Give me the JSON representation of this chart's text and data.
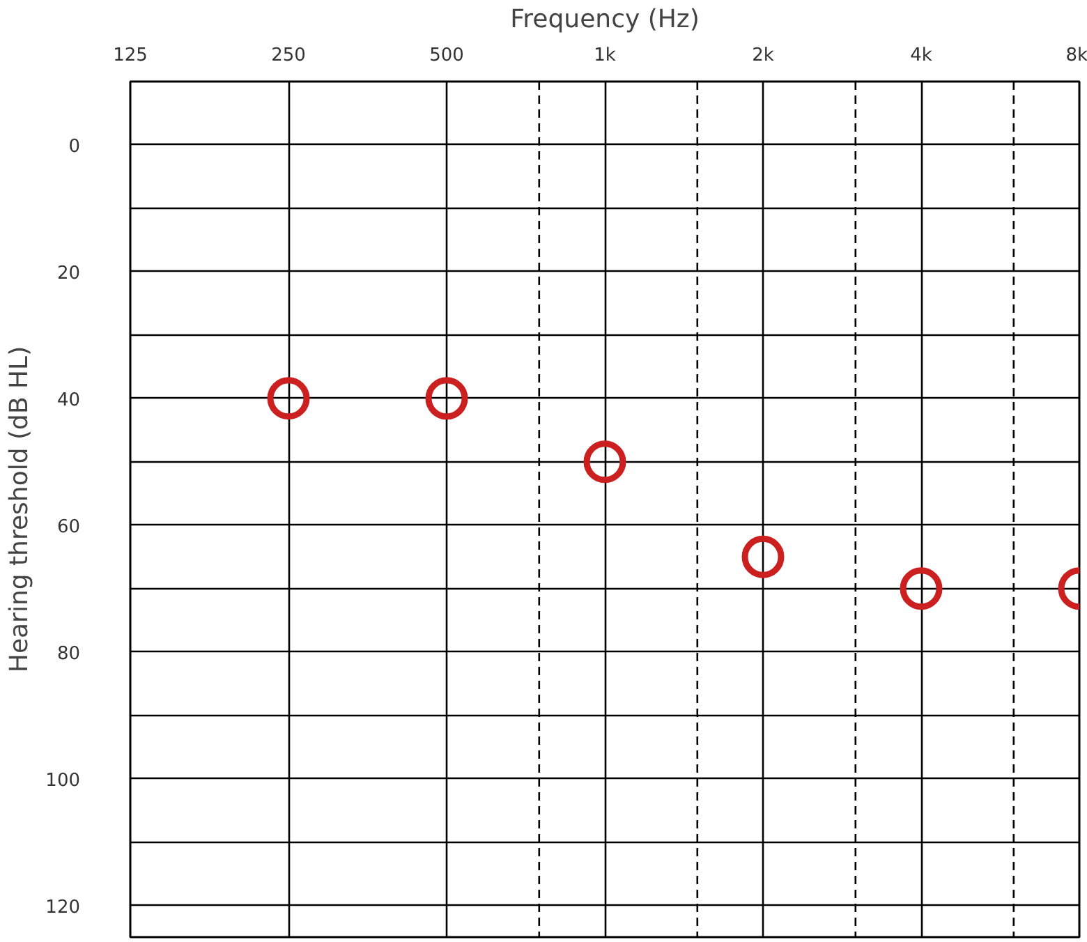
{
  "chart_data": {
    "type": "scatter",
    "xlabel": "Frequency (Hz)",
    "ylabel": "Hearing threshold (dB HL)",
    "x": [
      250,
      500,
      1000,
      2000,
      4000,
      8000
    ],
    "series": [
      {
        "color": "#cc2020",
        "values": [
          40,
          40,
          50,
          65,
          70,
          70
        ]
      }
    ],
    "log": "x",
    "marker": "circle",
    "grid": true,
    "xlim": [
      125,
      8000
    ],
    "ylim": [
      125,
      -10
    ],
    "xticks": [
      125,
      250,
      500,
      {
        "value": 1000,
        "label": "1k"
      },
      {
        "value": 2000,
        "label": "2k"
      },
      {
        "value": 4000,
        "label": "4k"
      },
      {
        "value": 8000,
        "label": "8k"
      }
    ],
    "yticks": [
      {
        "value": -10,
        "label": null
      },
      0,
      {
        "value": 10,
        "label": null
      },
      20,
      {
        "value": 30,
        "label": null
      },
      40,
      {
        "value": 50,
        "label": null
      },
      60,
      {
        "value": 70,
        "label": null
      },
      80,
      {
        "value": 90,
        "label": null
      },
      100,
      {
        "value": 110,
        "label": null
      },
      120
    ],
    "ref_lines": [
      {
        "axis": "x",
        "value": 750,
        "color": "#000000",
        "line_style": "dashed"
      },
      {
        "axis": "x",
        "value": 1500,
        "color": "#000000",
        "line_style": "dashed"
      },
      {
        "axis": "x",
        "value": 3000,
        "color": "#000000",
        "line_style": "dashed"
      },
      {
        "axis": "x",
        "value": 6000,
        "color": "#000000",
        "line_style": "dashed"
      }
    ]
  }
}
